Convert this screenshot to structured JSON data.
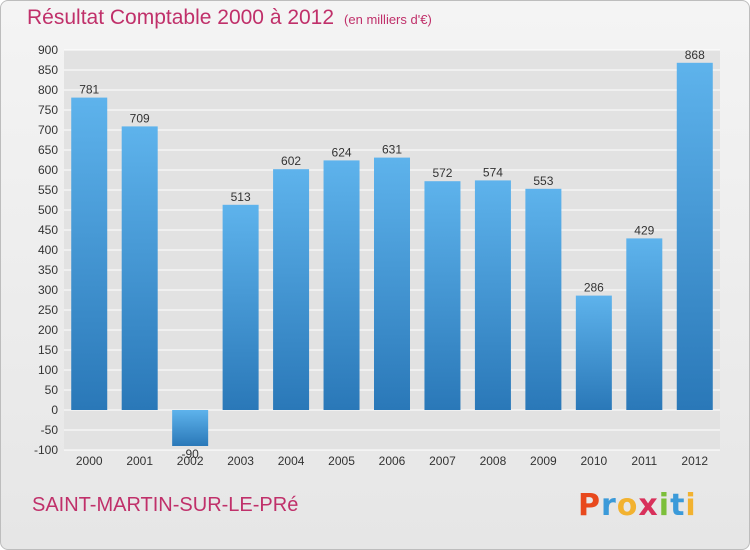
{
  "header": {
    "title": "Résultat Comptable 2000 à 2012",
    "unit": "(en milliers d'€)"
  },
  "footer": {
    "commune": "SAINT-MARTIN-SUR-LE-PRé",
    "logo": {
      "letters": [
        "P",
        "r",
        "o",
        "x",
        "i",
        "t",
        "i"
      ],
      "colors": [
        "#e8491d",
        "#3b9ad9",
        "#f2b230",
        "#d8315b",
        "#7cbf3a",
        "#3b9ad9",
        "#f2b230"
      ]
    }
  },
  "chart_data": {
    "type": "bar",
    "categories": [
      "2000",
      "2001",
      "2002",
      "2003",
      "2004",
      "2005",
      "2006",
      "2007",
      "2008",
      "2009",
      "2010",
      "2011",
      "2012"
    ],
    "values": [
      781,
      709,
      -90,
      513,
      602,
      624,
      631,
      572,
      574,
      553,
      286,
      429,
      868
    ],
    "data_labels": [
      "781",
      "709",
      "-90",
      "513",
      "602",
      "624",
      "631",
      "572",
      "574",
      "553",
      "286",
      "429",
      "868"
    ],
    "ylim": [
      -100,
      900
    ],
    "yticks": [
      900,
      850,
      800,
      750,
      700,
      650,
      600,
      550,
      500,
      450,
      400,
      350,
      300,
      250,
      200,
      150,
      100,
      50,
      0,
      -50,
      -100
    ],
    "title": "Résultat Comptable 2000 à 2012",
    "xlabel": "",
    "ylabel": "",
    "grid": true,
    "colors": {
      "bar_top": "#5eb3ec",
      "bar_bottom": "#2a78b8",
      "grid": "#ffffff"
    }
  }
}
